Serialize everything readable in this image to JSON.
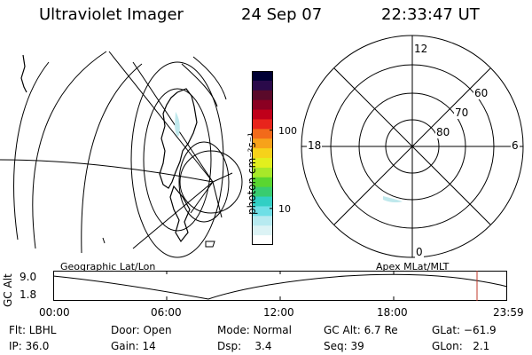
{
  "header": {
    "title": "Ultraviolet Imager",
    "date": "24 Sep 07",
    "time": "22:33:47 UT"
  },
  "colorbar": {
    "unit_label": "photon cm⁻²s⁻¹",
    "ticks": [
      "100",
      "10"
    ],
    "colors": [
      "#000033",
      "#2a0a4a",
      "#5a0a2a",
      "#8b0022",
      "#c0001a",
      "#e8241c",
      "#f26a1a",
      "#f7a21a",
      "#f6d21a",
      "#e2ef1e",
      "#a8e829",
      "#5ad630",
      "#38cc70",
      "#31cfc4",
      "#6fdfe6",
      "#b7eaf0",
      "#dcf3f5",
      "#ffffff"
    ]
  },
  "polar": {
    "mlt_labels": {
      "top": "12",
      "left": "18",
      "right": "6",
      "bottom": "0"
    },
    "lat_labels": [
      "60",
      "70",
      "80"
    ]
  },
  "orbit": {
    "ylabel": "GC Alt",
    "yticks": [
      "9.0",
      "1.8"
    ],
    "left_caption": "Geographic Lat/Lon",
    "right_caption": "Apex MLat/MLT",
    "xticks": [
      "00:00",
      "06:00",
      "12:00",
      "18:00",
      "23:59"
    ],
    "accent": "#c0392b"
  },
  "info": {
    "col1": [
      "Flt: LBHL",
      "IP: 36.0"
    ],
    "col2": [
      "Door: Open",
      "Gain: 14"
    ],
    "col3": [
      "Mode: Normal",
      "Dsp:    3.4"
    ],
    "col4": [
      "GC Alt: 6.7 Re",
      "Seq: 39"
    ],
    "col5": [
      "GLat: −61.9",
      "GLon:   2.1"
    ]
  }
}
